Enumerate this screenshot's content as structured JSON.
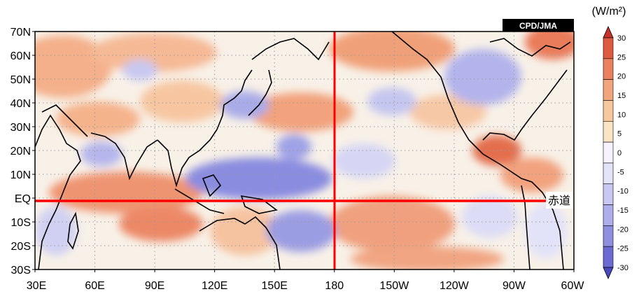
{
  "map": {
    "credit": "CPD/JMA",
    "equator_label": "赤道",
    "lat_labels": [
      "70N",
      "60N",
      "50N",
      "40N",
      "30N",
      "20N",
      "10N",
      "EQ",
      "10S",
      "20S",
      "30S"
    ],
    "lon_labels": [
      "30E",
      "60E",
      "90E",
      "120E",
      "150E",
      "180",
      "150W",
      "120W",
      "90W",
      "60W"
    ],
    "colors": {
      "positive_strong": "#e8704f",
      "positive_mid": "#f4a57a",
      "positive_light": "#f9d8b0",
      "neutral": "#f8f3ee",
      "negative_light": "#e3e2f6",
      "negative_mid": "#b8b8ee",
      "negative_strong": "#7f7fd9",
      "reference_line": "#ff0000",
      "coastline": "#000000"
    }
  },
  "colorbar": {
    "unit": "(W/m²)",
    "ticks": [
      "30",
      "25",
      "20",
      "15",
      "10",
      "5",
      "0",
      "-5",
      "-10",
      "-15",
      "-20",
      "-25",
      "-30"
    ],
    "colors_top_to_bottom": [
      "#c7332b",
      "#de5a40",
      "#ea8260",
      "#f2a47c",
      "#f7c79e",
      "#fbe3c6",
      "#f6f2ff",
      "#e3e3fa",
      "#c8c8f3",
      "#aeaeeb",
      "#8f8fe0",
      "#6b6bd2",
      "#4949bf"
    ]
  }
}
